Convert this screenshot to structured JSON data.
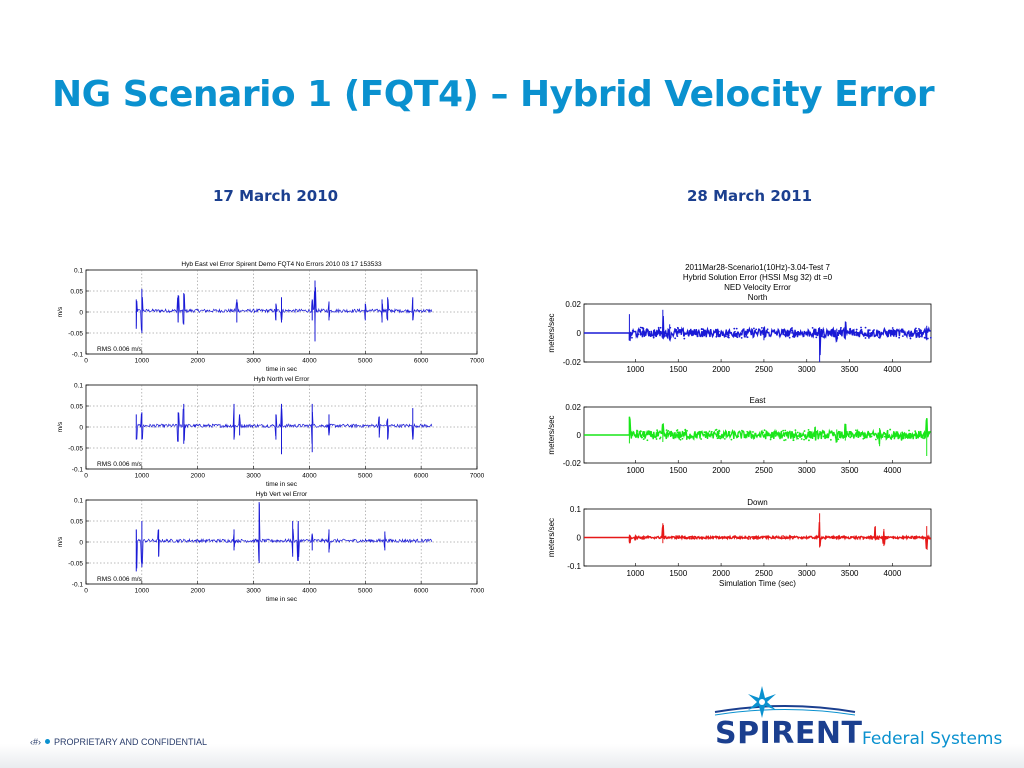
{
  "slide": {
    "title": "NG Scenario 1 (FQT4) – Hybrid Velocity Error",
    "left_heading": "17 March 2010",
    "right_heading": "28 March 2011",
    "footer": {
      "page_marker": "‹#›",
      "confidential": "PROPRIETARY AND CONFIDENTIAL"
    },
    "logo": {
      "brand": "SPIRENT",
      "division": "Federal Systems"
    }
  },
  "chart_data": [
    {
      "type": "line",
      "title": "Hyb East vel Error Spirent Demo FQT4 No Errors 2010 03 17 153533",
      "xlabel": "time in sec",
      "ylabel": "m/s",
      "xlim": [
        0,
        7000
      ],
      "ylim": [
        -0.1,
        0.1
      ],
      "xticks": [
        0,
        1000,
        2000,
        3000,
        4000,
        5000,
        6000,
        7000
      ],
      "yticks": [
        0.1,
        0.05,
        0,
        -0.05,
        -0.1
      ],
      "grid": true,
      "color": "#1a1ad6",
      "annotation": "RMS 0.006 m/s",
      "data_range": [
        900,
        6200
      ],
      "noise": 0.004,
      "spikes": [
        [
          900,
          0.03,
          -0.04
        ],
        [
          1000,
          0.055,
          -0.05
        ],
        [
          1650,
          0.04,
          -0.025
        ],
        [
          1750,
          0.045,
          -0.03
        ],
        [
          2700,
          0.03,
          -0.025
        ],
        [
          3400,
          0.02,
          -0.02
        ],
        [
          3500,
          0.035,
          -0.025
        ],
        [
          4050,
          0.03,
          -0.02
        ],
        [
          4100,
          0.075,
          -0.07
        ],
        [
          4350,
          0.025,
          -0.02
        ],
        [
          5000,
          0.02,
          -0.02
        ],
        [
          5300,
          0.03,
          -0.025
        ],
        [
          5400,
          0.035,
          -0.02
        ],
        [
          5850,
          0.035,
          -0.02
        ]
      ]
    },
    {
      "type": "line",
      "title": "Hyb North vel Error",
      "xlabel": "time in sec",
      "ylabel": "m/s",
      "xlim": [
        0,
        7000
      ],
      "ylim": [
        -0.1,
        0.1
      ],
      "xticks": [
        0,
        1000,
        2000,
        3000,
        4000,
        5000,
        6000,
        7000
      ],
      "yticks": [
        0.1,
        0.05,
        0,
        -0.05,
        -0.1
      ],
      "grid": true,
      "color": "#1a1ad6",
      "annotation": "RMS 0.006 m/s",
      "data_range": [
        900,
        6200
      ],
      "noise": 0.004,
      "spikes": [
        [
          900,
          0.03,
          -0.03
        ],
        [
          1000,
          0.035,
          -0.03
        ],
        [
          1650,
          0.035,
          -0.035
        ],
        [
          1750,
          0.055,
          -0.04
        ],
        [
          2650,
          0.055,
          -0.03
        ],
        [
          2750,
          0.03,
          -0.02
        ],
        [
          3400,
          0.03,
          -0.03
        ],
        [
          3500,
          0.055,
          -0.065
        ],
        [
          4050,
          0.055,
          -0.06
        ],
        [
          4350,
          0.03,
          -0.02
        ],
        [
          5250,
          0.025,
          -0.025
        ],
        [
          5400,
          0.02,
          -0.03
        ],
        [
          5850,
          0.045,
          -0.03
        ]
      ]
    },
    {
      "type": "line",
      "title": "Hyb Vert vel Error",
      "xlabel": "time in sec",
      "ylabel": "m/s",
      "xlim": [
        0,
        7000
      ],
      "ylim": [
        -0.1,
        0.1
      ],
      "xticks": [
        0,
        1000,
        2000,
        3000,
        4000,
        5000,
        6000,
        7000
      ],
      "yticks": [
        0.1,
        0.05,
        0,
        -0.05,
        -0.1
      ],
      "grid": true,
      "color": "#1a1ad6",
      "annotation": "RMS 0.006 m/s",
      "data_range": [
        900,
        6200
      ],
      "noise": 0.004,
      "spikes": [
        [
          900,
          0.03,
          -0.07
        ],
        [
          1000,
          0.05,
          -0.06
        ],
        [
          1300,
          0.03,
          -0.035
        ],
        [
          2650,
          0.03,
          -0.02
        ],
        [
          3100,
          0.095,
          -0.05
        ],
        [
          3700,
          0.05,
          -0.035
        ],
        [
          3800,
          0.05,
          -0.045
        ],
        [
          4050,
          0.02,
          -0.02
        ],
        [
          4350,
          0.03,
          -0.025
        ],
        [
          5350,
          0.025,
          -0.02
        ]
      ]
    },
    {
      "type": "scatter",
      "title": "2011Mar28-Scenario1(10Hz)-3.04-Test 7\nHybrid Solution Error (HSSI Msg 32)  dt =0\nNED Velocity Error\nNorth",
      "xlabel": "",
      "ylabel": "meters/sec",
      "xlim": [
        400,
        4450
      ],
      "ylim": [
        -0.02,
        0.02
      ],
      "xticks": [
        1000,
        1500,
        2000,
        2500,
        3000,
        3500,
        4000
      ],
      "yticks": [
        0.02,
        0,
        -0.02
      ],
      "grid": false,
      "color": "#1a1ad6",
      "flat_range": [
        400,
        930
      ],
      "data_range": [
        930,
        4450
      ],
      "noise": 0.003,
      "spikes": [
        [
          930,
          0.013,
          -0.005
        ],
        [
          1320,
          0.016,
          -0.004
        ],
        [
          1400,
          0.006,
          -0.005
        ],
        [
          2500,
          0.004,
          -0.005
        ],
        [
          3150,
          0.004,
          -0.02
        ],
        [
          3350,
          0.003,
          -0.006
        ],
        [
          3450,
          0.008,
          -0.004
        ],
        [
          4400,
          0.005,
          -0.005
        ]
      ]
    },
    {
      "type": "scatter",
      "title": "East",
      "xlabel": "",
      "ylabel": "meters/sec",
      "xlim": [
        400,
        4450
      ],
      "ylim": [
        -0.02,
        0.02
      ],
      "xticks": [
        1000,
        1500,
        2000,
        2500,
        3000,
        3500,
        4000
      ],
      "yticks": [
        0.02,
        0,
        -0.02
      ],
      "grid": false,
      "color": "#19e619",
      "flat_range": [
        400,
        930
      ],
      "data_range": [
        930,
        4450
      ],
      "noise": 0.003,
      "spikes": [
        [
          930,
          0.013,
          -0.006
        ],
        [
          1320,
          0.008,
          -0.005
        ],
        [
          3100,
          0.006,
          -0.004
        ],
        [
          3350,
          0.004,
          -0.005
        ],
        [
          3450,
          0.008,
          -0.004
        ],
        [
          3850,
          0.005,
          -0.008
        ],
        [
          4400,
          0.012,
          -0.015
        ]
      ]
    },
    {
      "type": "scatter",
      "title": "Down",
      "xlabel": "Simulation Time (sec)",
      "ylabel": "meters/sec",
      "xlim": [
        400,
        4450
      ],
      "ylim": [
        -0.1,
        0.1
      ],
      "xticks": [
        1000,
        1500,
        2000,
        2500,
        3000,
        3500,
        4000
      ],
      "yticks": [
        0.1,
        0,
        -0.1
      ],
      "grid": false,
      "color": "#e61919",
      "flat_range": [
        400,
        930
      ],
      "data_range": [
        930,
        4450
      ],
      "noise": 0.004,
      "spikes": [
        [
          930,
          0.01,
          -0.02
        ],
        [
          1000,
          0.01,
          -0.01
        ],
        [
          1320,
          0.05,
          -0.02
        ],
        [
          3150,
          0.085,
          -0.035
        ],
        [
          3800,
          0.04,
          -0.01
        ],
        [
          3900,
          0.03,
          -0.03
        ],
        [
          4400,
          0.04,
          -0.04
        ]
      ]
    }
  ]
}
